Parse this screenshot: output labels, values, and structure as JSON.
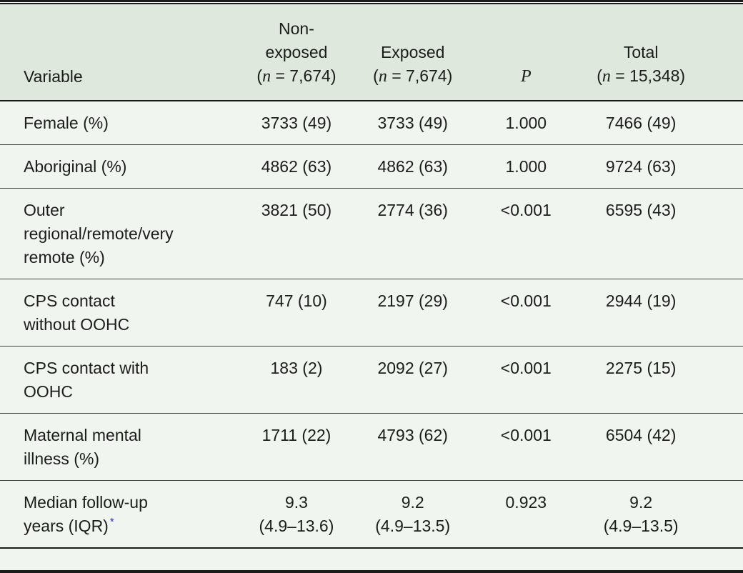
{
  "table": {
    "header": {
      "cols": [
        {
          "label": "Variable"
        },
        {
          "label": "Non-\nexposed",
          "n_open": "(",
          "n_var": "n",
          "n_rest": " = 7,674)"
        },
        {
          "label": "Exposed",
          "n_open": "(",
          "n_var": "n",
          "n_rest": " = 7,674)"
        },
        {
          "label": "P"
        },
        {
          "label": "Total",
          "n_open": "(",
          "n_var": "n",
          "n_rest": " = 15,348)"
        }
      ]
    },
    "rows": [
      {
        "variable": "Female (%)",
        "non_exposed": "3733 (49)",
        "exposed": "3733 (49)",
        "p": "1.000",
        "total": "7466 (49)"
      },
      {
        "variable": "Aboriginal (%)",
        "non_exposed": "4862 (63)",
        "exposed": "4862 (63)",
        "p": "1.000",
        "total": "9724 (63)"
      },
      {
        "variable": "Outer\nregional/remote/very\nremote (%)",
        "non_exposed": "3821 (50)",
        "exposed": "2774 (36)",
        "p": "<0.001",
        "total": "6595 (43)"
      },
      {
        "variable": "CPS contact\nwithout OOHC",
        "non_exposed": "747 (10)",
        "exposed": "2197 (29)",
        "p": "<0.001",
        "total": "2944 (19)"
      },
      {
        "variable": "CPS contact with\nOOHC",
        "non_exposed": "183 (2)",
        "exposed": "2092 (27)",
        "p": "<0.001",
        "total": "2275 (15)"
      },
      {
        "variable": "Maternal mental\nillness (%)",
        "non_exposed": "1711 (22)",
        "exposed": "4793 (62)",
        "p": "<0.001",
        "total": "6504 (42)"
      },
      {
        "variable": "Median follow-up\nyears (IQR)",
        "footnote_marker": "*",
        "non_exposed": "9.3\n(4.9–13.6)",
        "exposed": "9.2\n(4.9–13.5)",
        "p": "0.923",
        "total": "9.2\n(4.9–13.5)"
      }
    ]
  },
  "colors": {
    "header_bg": "#dee8dd",
    "body_bg": "#f1f5f0",
    "rule_dark": "#1b1b1b",
    "row_rule": "#434343",
    "text": "#1c1c1c",
    "footnote_star": "#2a2ad8"
  }
}
